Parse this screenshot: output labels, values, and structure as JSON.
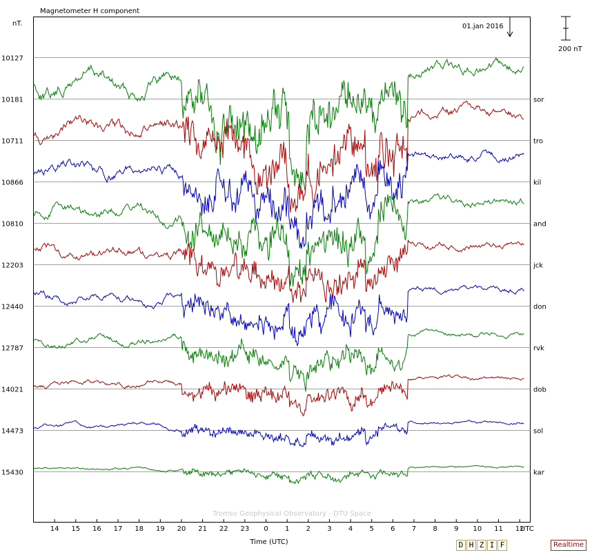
{
  "chart_data": {
    "type": "line",
    "title": "Magnetometer H component",
    "date_label": "01.jan 2016",
    "y_unit_label": "nT.",
    "scale_bar_label": "200 nT",
    "x_unit_label": "UTC",
    "xlabel": "Time (UTC)",
    "watermark": "Tromso Geophysical Observatory - DTU Space",
    "x_ticks": [
      "14",
      "15",
      "16",
      "17",
      "18",
      "19",
      "20",
      "21",
      "22",
      "23",
      "0",
      "1",
      "2",
      "3",
      "4",
      "5",
      "6",
      "7",
      "8",
      "9",
      "10",
      "11",
      "12"
    ],
    "x_range_hours": [
      13,
      36.5
    ],
    "scale_nT": 200,
    "grid": true,
    "series": [
      {
        "name": "sor",
        "baseline_nT": 10127,
        "color": "#008000"
      },
      {
        "name": "tro",
        "baseline_nT": 10181,
        "color": "#b00000"
      },
      {
        "name": "kil",
        "baseline_nT": 10711,
        "color": "#0000c8"
      },
      {
        "name": "and",
        "baseline_nT": 10866,
        "color": "#008000"
      },
      {
        "name": "jck",
        "baseline_nT": 10810,
        "color": "#b00000"
      },
      {
        "name": "don",
        "baseline_nT": 12203,
        "color": "#0000c8"
      },
      {
        "name": "rvk",
        "baseline_nT": 12440,
        "color": "#008000"
      },
      {
        "name": "dob",
        "baseline_nT": 12787,
        "color": "#b00000"
      },
      {
        "name": "sol",
        "baseline_nT": 14021,
        "color": "#0000c8"
      },
      {
        "name": "kar",
        "baseline_nT": 14473,
        "color": "#008000"
      }
    ],
    "extra_baseline_nT": 15430
  },
  "controls": {
    "component_buttons": [
      "D",
      "H",
      "Z",
      "I",
      "F"
    ],
    "realtime_label": "Realtime"
  }
}
